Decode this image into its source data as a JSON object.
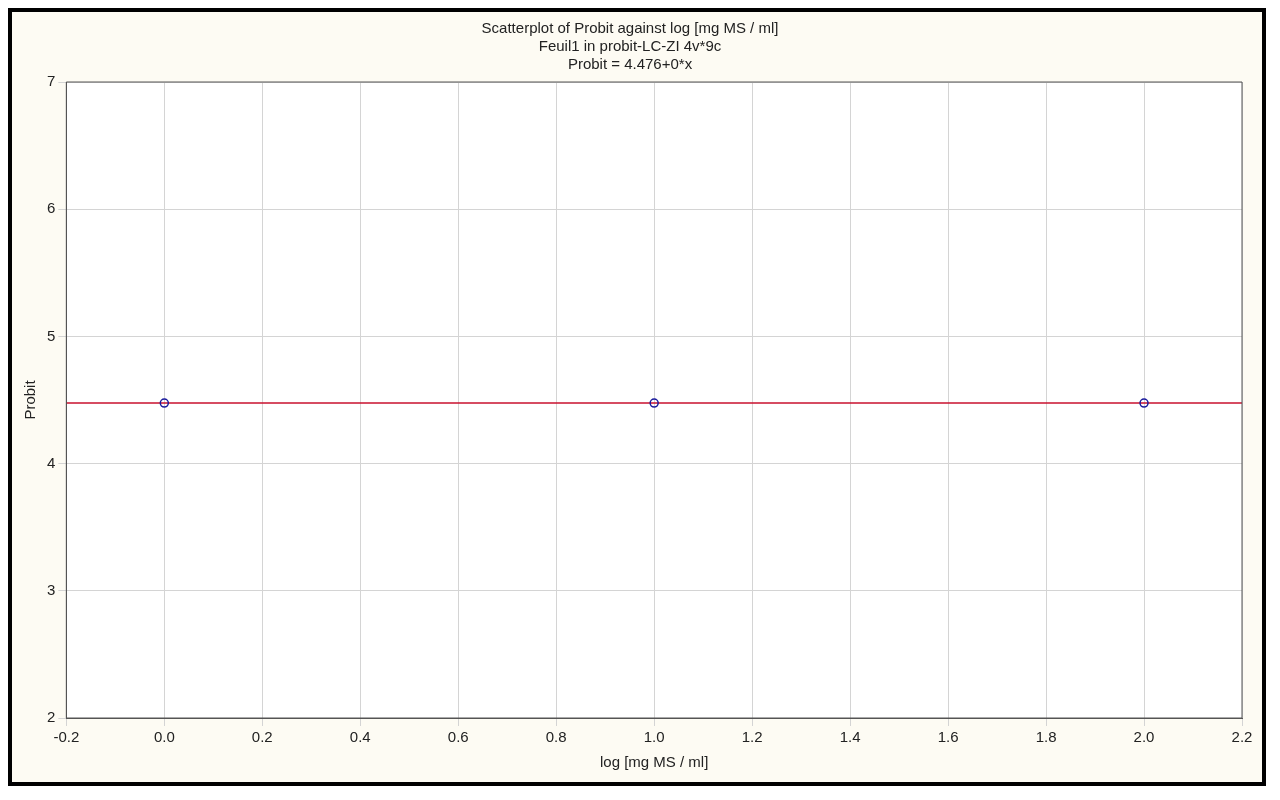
{
  "chart_data": {
    "type": "scatter",
    "title": "Scatterplot of Probit against log [mg MS / ml]",
    "subtitle": "Feuil1 in probit-LC-ZI 4v*9c",
    "annotations": [
      "Probit = 4.476+0*x"
    ],
    "xlabel": "log [mg MS / ml]",
    "ylabel": "Probit",
    "series": [
      {
        "type": "line",
        "color": "#c8102e",
        "x": [
          -0.2,
          2.2
        ],
        "values": [
          4.476,
          4.476
        ],
        "marker": "none"
      },
      {
        "type": "scatter",
        "color": "#1a1a9c",
        "x": [
          0,
          1,
          2
        ],
        "values": [
          4.476,
          4.476,
          4.476
        ],
        "marker": "circle"
      }
    ],
    "xlim": [
      -0.2,
      2.2
    ],
    "xticks": [
      {
        "value": -0.2,
        "label": "-0.2"
      },
      {
        "value": 0,
        "label": "0.0"
      },
      {
        "value": 0.2,
        "label": "0.2"
      },
      {
        "value": 0.4,
        "label": "0.4"
      },
      {
        "value": 0.6,
        "label": "0.6"
      },
      {
        "value": 0.8,
        "label": "0.8"
      },
      {
        "value": 1,
        "label": "1.0"
      },
      {
        "value": 1.2,
        "label": "1.2"
      },
      {
        "value": 1.4,
        "label": "1.4"
      },
      {
        "value": 1.6,
        "label": "1.6"
      },
      {
        "value": 1.8,
        "label": "1.8"
      },
      {
        "value": 2,
        "label": "2.0"
      },
      {
        "value": 2.2,
        "label": "2.2"
      }
    ],
    "ylim": [
      2,
      7
    ],
    "yticks": [
      2,
      3,
      4,
      5,
      6,
      7
    ],
    "grid": true,
    "legend": false
  }
}
